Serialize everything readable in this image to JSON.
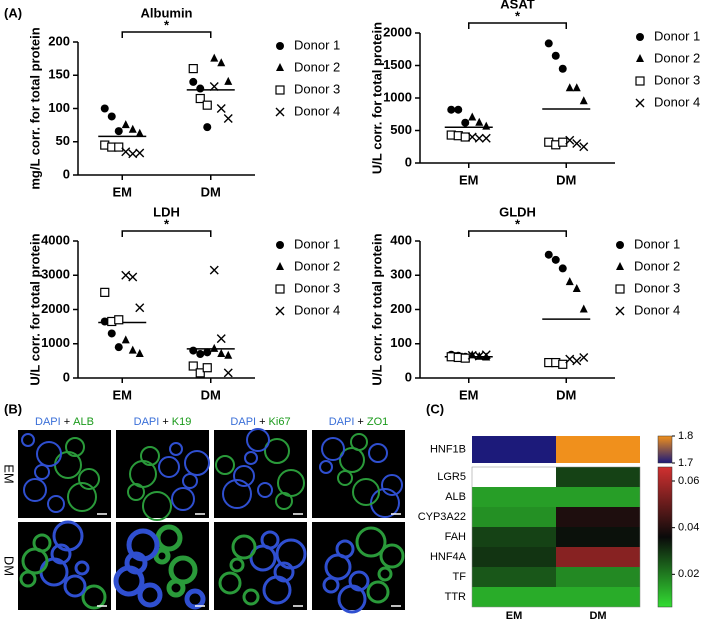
{
  "panel_labels": [
    "(A)",
    "(B)",
    "(C)"
  ],
  "chart_data": [
    {
      "type": "strip",
      "title": "Albumin",
      "y_label": "mg/L corr. for total protein",
      "categories": [
        "EM",
        "DM"
      ],
      "ylim": [
        0,
        200
      ],
      "yticks": [
        0,
        50,
        100,
        150,
        200
      ],
      "significance": "*",
      "means": [
        58,
        128
      ],
      "series": [
        {
          "name": "Donor 1",
          "marker": "circle",
          "color": "#000000",
          "values": [
            [
              100,
              88,
              66
            ],
            [
              140,
              130,
              72
            ]
          ]
        },
        {
          "name": "Donor 2",
          "marker": "triangle",
          "color": "#000000",
          "values": [
            [
              75,
              68,
              62
            ],
            [
              175,
              168,
              140
            ]
          ]
        },
        {
          "name": "Donor 3",
          "marker": "square",
          "color": "#000000",
          "values": [
            [
              45,
              42,
              42
            ],
            [
              160,
              115,
              105
            ]
          ]
        },
        {
          "name": "Donor 4",
          "marker": "cross",
          "color": "#000000",
          "values": [
            [
              35,
              32,
              33
            ],
            [
              133,
              100,
              85
            ]
          ]
        }
      ]
    },
    {
      "type": "strip",
      "title": "ASAT",
      "y_label": "U/L corr. for total protein",
      "categories": [
        "EM",
        "DM"
      ],
      "ylim": [
        0,
        2000
      ],
      "yticks": [
        0,
        500,
        1000,
        1500,
        2000
      ],
      "significance": "*",
      "means": [
        550,
        830
      ],
      "series": [
        {
          "name": "Donor 1",
          "marker": "circle",
          "color": "#000000",
          "values": [
            [
              820,
              820,
              620
            ],
            [
              1840,
              1650,
              1450
            ]
          ]
        },
        {
          "name": "Donor 2",
          "marker": "triangle",
          "color": "#000000",
          "values": [
            [
              700,
              620,
              560
            ],
            [
              1150,
              1150,
              950
            ]
          ]
        },
        {
          "name": "Donor 3",
          "marker": "square",
          "color": "#000000",
          "values": [
            [
              430,
              420,
              400
            ],
            [
              320,
              280,
              320
            ]
          ]
        },
        {
          "name": "Donor 4",
          "marker": "cross",
          "color": "#000000",
          "values": [
            [
              400,
              380,
              380
            ],
            [
              350,
              300,
              250
            ]
          ]
        }
      ]
    },
    {
      "type": "strip",
      "title": "LDH",
      "y_label": "U/L corr. for total protein",
      "categories": [
        "EM",
        "DM"
      ],
      "ylim": [
        0,
        4000
      ],
      "yticks": [
        0,
        1000,
        2000,
        3000,
        4000
      ],
      "significance": "*",
      "means": [
        1620,
        850
      ],
      "series": [
        {
          "name": "Donor 1",
          "marker": "circle",
          "color": "#000000",
          "values": [
            [
              1650,
              1300,
              900
            ],
            [
              800,
              700,
              750
            ]
          ]
        },
        {
          "name": "Donor 2",
          "marker": "triangle",
          "color": "#000000",
          "values": [
            [
              1100,
              800,
              700
            ],
            [
              850,
              700,
              650
            ]
          ]
        },
        {
          "name": "Donor 3",
          "marker": "square",
          "color": "#000000",
          "values": [
            [
              2500,
              1650,
              1700
            ],
            [
              350,
              150,
              300
            ]
          ]
        },
        {
          "name": "Donor 4",
          "marker": "cross",
          "color": "#000000",
          "values": [
            [
              3000,
              2950,
              2050
            ],
            [
              3150,
              1150,
              150
            ]
          ]
        }
      ]
    },
    {
      "type": "strip",
      "title": "GLDH",
      "y_label": "U/L corr. for total protein",
      "categories": [
        "EM",
        "DM"
      ],
      "ylim": [
        0,
        400
      ],
      "yticks": [
        0,
        100,
        200,
        300,
        400
      ],
      "significance": "*",
      "means": [
        62,
        172
      ],
      "series": [
        {
          "name": "Donor 1",
          "marker": "circle",
          "color": "#000000",
          "values": [
            [
              68,
              65,
              62
            ],
            [
              360,
              345,
              320
            ]
          ]
        },
        {
          "name": "Donor 2",
          "marker": "triangle",
          "color": "#000000",
          "values": [
            [
              66,
              62,
              60
            ],
            [
              280,
              260,
              200
            ]
          ]
        },
        {
          "name": "Donor 3",
          "marker": "square",
          "color": "#000000",
          "values": [
            [
              62,
              60,
              58
            ],
            [
              45,
              45,
              40
            ]
          ]
        },
        {
          "name": "Donor 4",
          "marker": "cross",
          "color": "#000000",
          "values": [
            [
              66,
              64,
              68
            ],
            [
              55,
              50,
              60
            ]
          ]
        }
      ]
    },
    {
      "type": "heatmap",
      "columns": [
        "EM",
        "DM"
      ],
      "top": {
        "rows": [
          "HNF1B"
        ],
        "values": [
          [
            1.7,
            1.8
          ]
        ],
        "zlim": [
          1.7,
          1.8
        ],
        "zticks": [
          1.8,
          1.7
        ],
        "colors": [
          "#1c1a7a",
          "#f0901c"
        ]
      },
      "rows": [
        "LGR5",
        "ALB",
        "CYP3A22",
        "FAH",
        "HNF4A",
        "TF",
        "TTR"
      ],
      "values": [
        [
          null,
          0.028
        ],
        [
          0.015,
          0.015
        ],
        [
          0.017,
          0.039
        ],
        [
          0.028,
          0.035
        ],
        [
          0.03,
          0.055
        ],
        [
          0.025,
          0.018
        ],
        [
          0.013,
          0.013
        ]
      ],
      "zlim": [
        0.006,
        0.066
      ],
      "zticks": [
        0.02,
        0.04,
        0.06
      ],
      "colors": [
        "#33dd33",
        "#0a0a0a",
        "#d03030"
      ]
    }
  ],
  "micrographs": {
    "rows": [
      "EM",
      "DM"
    ],
    "columns": [
      {
        "stain": "DAPI",
        "join": "+",
        "marker": "ALB"
      },
      {
        "stain": "DAPI",
        "join": "+",
        "marker": "K19"
      },
      {
        "stain": "DAPI",
        "join": "+",
        "marker": "Ki67"
      },
      {
        "stain": "DAPI",
        "join": "+",
        "marker": "ZO1"
      }
    ]
  }
}
